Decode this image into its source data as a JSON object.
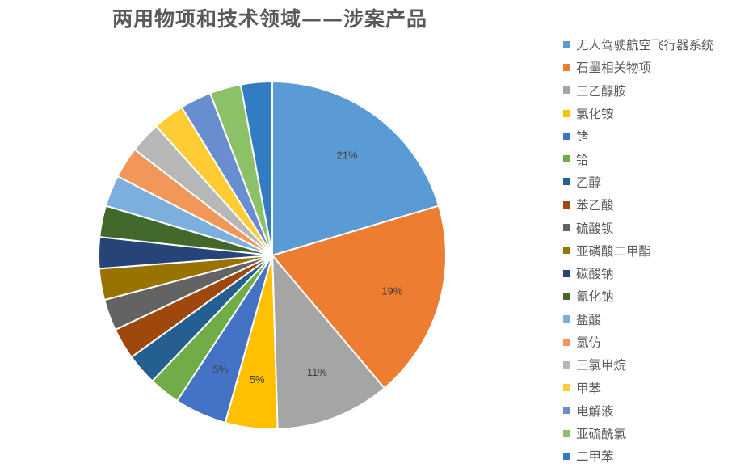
{
  "chart_data": {
    "type": "pie",
    "title": "两用物项和技术领域——涉案产品",
    "legend_position": "right",
    "slices": [
      {
        "label": "无人驾驶航空飞行器系统",
        "value": 21,
        "data_label": "21%",
        "color": "#5B9BD5"
      },
      {
        "label": "石墨相关物项",
        "value": 19,
        "data_label": "19%",
        "color": "#ED7D31"
      },
      {
        "label": "三乙醇胺",
        "value": 11,
        "data_label": "11%",
        "color": "#A5A5A5"
      },
      {
        "label": "氯化铵",
        "value": 5,
        "data_label": "5%",
        "color": "#FFC000"
      },
      {
        "label": "锗",
        "value": 5,
        "data_label": "5%",
        "color": "#4472C4"
      },
      {
        "label": "铪",
        "value": 3,
        "data_label": "",
        "color": "#70AD47"
      },
      {
        "label": "乙醇",
        "value": 3,
        "data_label": "",
        "color": "#255E91"
      },
      {
        "label": "苯乙酸",
        "value": 3,
        "data_label": "",
        "color": "#9E480E"
      },
      {
        "label": "硫酸钡",
        "value": 3,
        "data_label": "",
        "color": "#636363"
      },
      {
        "label": "亚磷酸二甲酯",
        "value": 3,
        "data_label": "",
        "color": "#997300"
      },
      {
        "label": "碳酸钠",
        "value": 3,
        "data_label": "",
        "color": "#264478"
      },
      {
        "label": "氰化钠",
        "value": 3,
        "data_label": "",
        "color": "#43682B"
      },
      {
        "label": "盐酸",
        "value": 3,
        "data_label": "",
        "color": "#7CAFDD"
      },
      {
        "label": "氯仿",
        "value": 3,
        "data_label": "",
        "color": "#F1975A"
      },
      {
        "label": "三氯甲烷",
        "value": 3,
        "data_label": "",
        "color": "#B7B7B7"
      },
      {
        "label": "甲苯",
        "value": 3,
        "data_label": "",
        "color": "#FFCD33"
      },
      {
        "label": "电解液",
        "value": 3,
        "data_label": "",
        "color": "#698ED0"
      },
      {
        "label": "亚硫酰氯",
        "value": 3,
        "data_label": "",
        "color": "#8CC168"
      },
      {
        "label": "二甲苯",
        "value": 3,
        "data_label": "",
        "color": "#327DC2"
      }
    ]
  }
}
